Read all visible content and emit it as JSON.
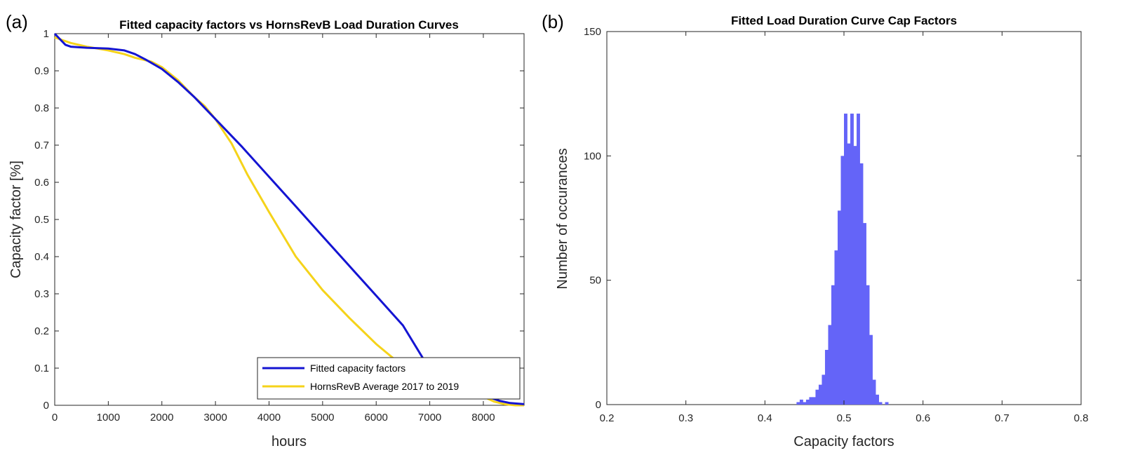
{
  "figure": {
    "panel_a_label": "(a)",
    "panel_b_label": "(b)"
  },
  "chart_data": [
    {
      "type": "line",
      "title": "Fitted capacity factors vs HornsRevB Load Duration Curves",
      "xlabel": "hours",
      "ylabel": "Capacity factor [%]",
      "xlim": [
        0,
        8760
      ],
      "ylim": [
        0,
        1
      ],
      "xticks": [
        0,
        1000,
        2000,
        3000,
        4000,
        5000,
        6000,
        7000,
        8000
      ],
      "xtick_labels": [
        "0",
        "1000",
        "2000",
        "3000",
        "4000",
        "5000",
        "6000",
        "7000",
        "8000"
      ],
      "yticks": [
        0,
        0.1,
        0.2,
        0.3,
        0.4,
        0.5,
        0.6,
        0.7,
        0.8,
        0.9,
        1
      ],
      "ytick_labels": [
        "0",
        "0.1",
        "0.2",
        "0.3",
        "0.4",
        "0.5",
        "0.6",
        "0.7",
        "0.8",
        "0.9",
        "1"
      ],
      "legend_position": "bottom-right",
      "series": [
        {
          "name": "Fitted capacity factors",
          "color": "#1414d2",
          "x": [
            0,
            100,
            200,
            300,
            600,
            1000,
            1300,
            1500,
            1700,
            2000,
            2300,
            2600,
            2900,
            3200,
            3500,
            4000,
            4500,
            5000,
            5500,
            6000,
            6500,
            6900,
            7200,
            7500,
            7800,
            8100,
            8300,
            8500,
            8760
          ],
          "y": [
            1.0,
            0.985,
            0.97,
            0.965,
            0.962,
            0.96,
            0.955,
            0.945,
            0.93,
            0.905,
            0.87,
            0.83,
            0.785,
            0.74,
            0.695,
            0.615,
            0.535,
            0.455,
            0.375,
            0.295,
            0.215,
            0.12,
            0.085,
            0.06,
            0.04,
            0.022,
            0.012,
            0.006,
            0.003
          ]
        },
        {
          "name": "HornsRevB Average 2017 to 2019",
          "color": "#f5d31a",
          "x": [
            0,
            100,
            300,
            600,
            1000,
            1300,
            1500,
            1800,
            2000,
            2300,
            2600,
            2800,
            3000,
            3300,
            3600,
            4000,
            4500,
            5000,
            5500,
            6000,
            6500,
            7000,
            7300,
            7600,
            7900,
            8200,
            8400,
            8600,
            8760
          ],
          "y": [
            0.99,
            0.985,
            0.975,
            0.965,
            0.955,
            0.945,
            0.935,
            0.925,
            0.91,
            0.875,
            0.83,
            0.805,
            0.77,
            0.705,
            0.62,
            0.52,
            0.4,
            0.31,
            0.235,
            0.165,
            0.105,
            0.07,
            0.055,
            0.045,
            0.03,
            0.01,
            0.003,
            0.0,
            0.0
          ]
        }
      ]
    },
    {
      "type": "bar",
      "title": "Fitted Load Duration Curve Cap Factors",
      "xlabel": "Capacity factors",
      "ylabel": "Number of occurances",
      "xlim": [
        0.2,
        0.8
      ],
      "ylim": [
        0,
        150
      ],
      "xticks": [
        0.2,
        0.3,
        0.4,
        0.5,
        0.6,
        0.7,
        0.8
      ],
      "xtick_labels": [
        "0.2",
        "0.3",
        "0.4",
        "0.5",
        "0.6",
        "0.7",
        "0.8"
      ],
      "yticks": [
        0,
        50,
        100,
        150
      ],
      "ytick_labels": [
        "0",
        "50",
        "100",
        "150"
      ],
      "bar_color": "#6464f8",
      "bin_width": 0.004,
      "bin_edges_start": 0.44,
      "values": [
        1,
        2,
        1,
        2,
        3,
        3,
        6,
        8,
        12,
        22,
        32,
        48,
        62,
        78,
        100,
        117,
        105,
        117,
        104,
        117,
        97,
        73,
        48,
        28,
        10,
        4,
        1,
        0,
        1
      ]
    }
  ]
}
